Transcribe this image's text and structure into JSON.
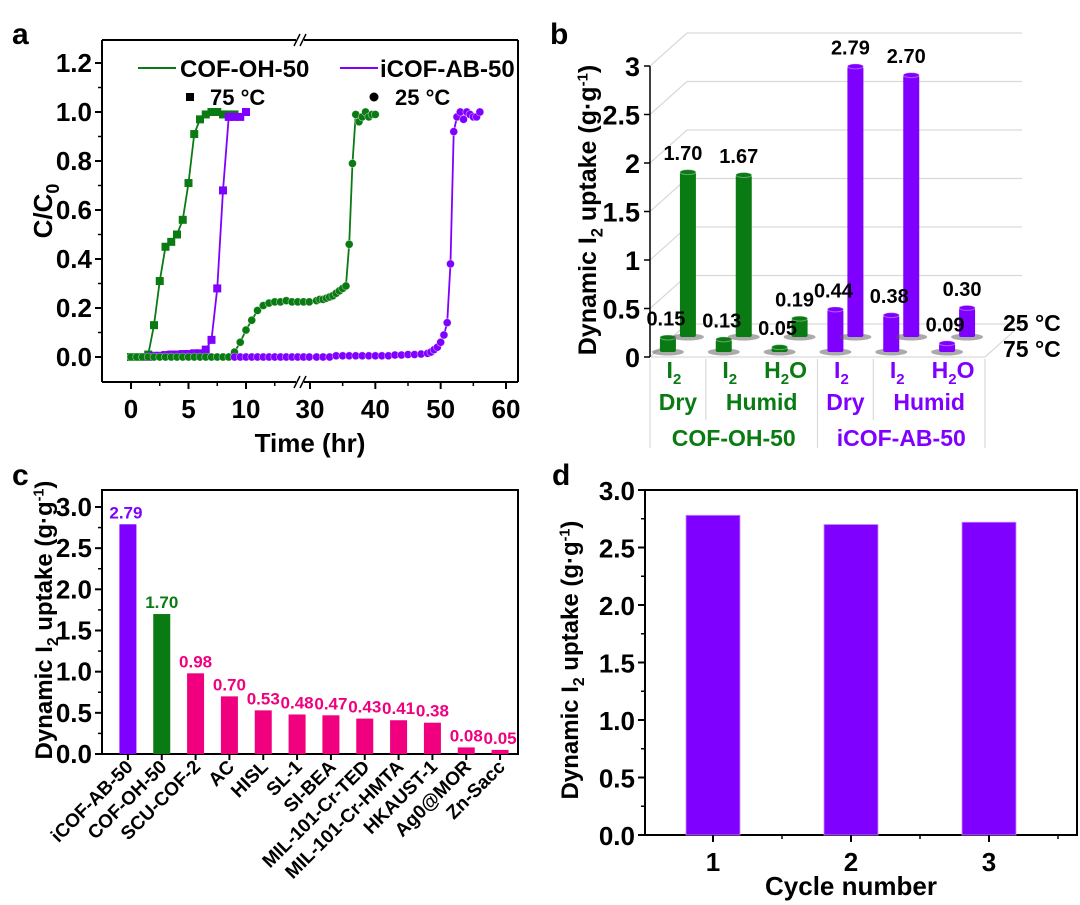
{
  "colors": {
    "green": "#0a7a12",
    "purple": "#8000ff",
    "pink": "#f0007f",
    "black": "#000000",
    "grid": "#d9d9d9"
  },
  "chart_data": [
    {
      "panel": "a",
      "type": "line",
      "title": "",
      "xlabel": "Time (hr)",
      "ylabel": "C/C0",
      "ylabel_main": "C/C",
      "ylabel_sub": "0",
      "xlim_segments": [
        [
          -1,
          16
        ],
        [
          30,
          60
        ]
      ],
      "x_break": true,
      "ylim": [
        -0.1,
        1.3
      ],
      "xticks": [
        0,
        5,
        10,
        30,
        40,
        50,
        60
      ],
      "xtick_labels": [
        "0",
        "5",
        "10",
        "30",
        "40",
        "50",
        "60"
      ],
      "yticks": [
        0.0,
        0.2,
        0.4,
        0.6,
        0.8,
        1.0,
        1.2
      ],
      "ytick_labels": [
        "0.0",
        "0.2",
        "0.4",
        "0.6",
        "0.8",
        "1.0",
        "1.2"
      ],
      "legend": {
        "placement": "top",
        "lines": [
          {
            "label": "COF-OH-50",
            "color": "green"
          },
          {
            "label": "iCOF-AB-50",
            "color": "purple"
          }
        ],
        "markers": [
          {
            "label": "75 °C",
            "marker": "square"
          },
          {
            "label": "25 °C",
            "marker": "circle"
          }
        ]
      },
      "series": [
        {
          "name": "COF-OH-50 75 °C",
          "color": "green",
          "marker": "square",
          "x": [
            0,
            0.25,
            0.5,
            0.75,
            1,
            1.25,
            1.5,
            2,
            2.5,
            3,
            3.5,
            4,
            4.5,
            5,
            5.5,
            6,
            6.5,
            7,
            7.5,
            8,
            8.5,
            9
          ],
          "y": [
            0,
            0,
            0,
            0,
            0,
            0,
            0.01,
            0.13,
            0.31,
            0.45,
            0.47,
            0.5,
            0.56,
            0.71,
            0.91,
            0.97,
            0.99,
            1.0,
            1.0,
            0.99,
            0.99,
            0.99
          ]
        },
        {
          "name": "iCOF-AB-50 75 °C",
          "color": "purple",
          "marker": "square",
          "x": [
            1.5,
            2,
            2.5,
            3,
            3.5,
            4,
            4.5,
            5,
            5.5,
            6,
            6.5,
            7,
            7.5,
            8,
            8.5,
            9,
            9.5,
            10
          ],
          "y": [
            0,
            0.005,
            0.005,
            0.008,
            0.01,
            0.01,
            0.012,
            0.012,
            0.015,
            0.015,
            0.03,
            0.07,
            0.28,
            0.68,
            0.98,
            0.98,
            0.98,
            1.0
          ]
        },
        {
          "name": "COF-OH-50 25 °C",
          "color": "green",
          "marker": "circle",
          "x": [
            0,
            0.5,
            1,
            1.5,
            2,
            2.5,
            3,
            3.5,
            4,
            4.5,
            5,
            5.5,
            6,
            6.5,
            7,
            7.5,
            8,
            8.5,
            9,
            9.5,
            10,
            10.5,
            11,
            11.5,
            12,
            12.5,
            13,
            13.5,
            14,
            14.5,
            15,
            15.5,
            31,
            31.5,
            32,
            32.5,
            33,
            33.5,
            34,
            34.5,
            35,
            35.5,
            36,
            36.5,
            37,
            37.5,
            38,
            38.5,
            39,
            39.5,
            40
          ],
          "y": [
            0,
            0,
            0,
            0,
            0,
            0,
            0,
            0,
            0,
            0,
            0,
            0,
            0,
            0,
            0,
            0,
            0,
            0,
            0.02,
            0.06,
            0.11,
            0.15,
            0.19,
            0.21,
            0.22,
            0.225,
            0.225,
            0.23,
            0.225,
            0.225,
            0.225,
            0.225,
            0.23,
            0.235,
            0.235,
            0.24,
            0.245,
            0.25,
            0.26,
            0.27,
            0.28,
            0.29,
            0.46,
            0.79,
            0.99,
            0.96,
            0.98,
            1.0,
            0.98,
            0.99,
            0.99
          ]
        },
        {
          "name": "iCOF-AB-50 25 °C",
          "color": "purple",
          "marker": "circle",
          "x": [
            9,
            9.5,
            10,
            10.5,
            11,
            11.5,
            12,
            12.5,
            13,
            13.5,
            14,
            14.5,
            15,
            15.5,
            31,
            32,
            33,
            34,
            35,
            36,
            37,
            38,
            39,
            40,
            41,
            42,
            43,
            44,
            45,
            46,
            47,
            48,
            48.5,
            49,
            49.5,
            50,
            50.5,
            51,
            51.5,
            52,
            52.5,
            53,
            53.5,
            54,
            54.5,
            55,
            55.5,
            56
          ],
          "y": [
            0,
            0,
            0,
            0,
            0,
            0,
            0,
            0,
            0,
            0,
            0,
            0,
            0,
            0,
            0,
            0,
            0,
            0.005,
            0.005,
            0.005,
            0.005,
            0.005,
            0.005,
            0.005,
            0.005,
            0.005,
            0.008,
            0.008,
            0.01,
            0.01,
            0.012,
            0.015,
            0.02,
            0.03,
            0.04,
            0.06,
            0.09,
            0.14,
            0.38,
            0.92,
            0.98,
            1.0,
            0.97,
            1.0,
            0.99,
            0.98,
            0.98,
            1.0
          ]
        }
      ]
    },
    {
      "panel": "b",
      "type": "bar",
      "subtype": "3d-cylinder",
      "title": "",
      "ylabel": "Dynamic I2 uptake (g·g-1)",
      "ylim": [
        0,
        3
      ],
      "yticks": [
        0,
        0.5,
        1,
        1.5,
        2,
        2.5,
        3
      ],
      "ytick_labels": [
        "0",
        "0.5",
        "1",
        "1.5",
        "2",
        "2.5",
        "3"
      ],
      "depth_labels": [
        "25 °C",
        "75 °C"
      ],
      "categories": [
        {
          "adsorbate": "I2",
          "condition": "Dry",
          "material": "COF-OH-50",
          "color": "green"
        },
        {
          "adsorbate": "I2",
          "condition": "Humid",
          "material": "COF-OH-50",
          "color": "green"
        },
        {
          "adsorbate": "H2O",
          "condition": "Humid",
          "material": "COF-OH-50",
          "color": "green"
        },
        {
          "adsorbate": "I2",
          "condition": "Dry",
          "material": "iCOF-AB-50",
          "color": "purple"
        },
        {
          "adsorbate": "I2",
          "condition": "Humid",
          "material": "iCOF-AB-50",
          "color": "purple"
        },
        {
          "adsorbate": "H2O",
          "condition": "Humid",
          "material": "iCOF-AB-50",
          "color": "purple"
        }
      ],
      "group_labels": [
        {
          "label": "Dry",
          "span": [
            0,
            0
          ],
          "color": "green"
        },
        {
          "label": "Humid",
          "span": [
            1,
            2
          ],
          "color": "green"
        },
        {
          "label": "Dry",
          "span": [
            3,
            3
          ],
          "color": "purple"
        },
        {
          "label": "Humid",
          "span": [
            4,
            5
          ],
          "color": "purple"
        }
      ],
      "material_labels": [
        {
          "label": "COF-OH-50",
          "span": [
            0,
            2
          ],
          "color": "green"
        },
        {
          "label": "iCOF-AB-50",
          "span": [
            3,
            5
          ],
          "color": "purple"
        }
      ],
      "series": [
        {
          "name": "75 °C",
          "values": [
            0.15,
            0.13,
            0.05,
            0.44,
            0.38,
            0.09
          ],
          "labels": [
            "0.15",
            "0.13",
            "0.05",
            "0.44",
            "0.38",
            "0.09"
          ]
        },
        {
          "name": "25 °C",
          "values": [
            1.7,
            1.67,
            0.19,
            2.79,
            2.7,
            0.3
          ],
          "labels": [
            "1.70",
            "1.67",
            "0.19",
            "2.79",
            "2.70",
            "0.30"
          ]
        }
      ]
    },
    {
      "panel": "c",
      "type": "bar",
      "title": "",
      "xlabel": "",
      "ylabel": "Dynamic I2 uptake (g·g-1)",
      "ylim": [
        0,
        3.2
      ],
      "yticks": [
        0.0,
        0.5,
        1.0,
        1.5,
        2.0,
        2.5,
        3.0
      ],
      "ytick_labels": [
        "0.0",
        "0.5",
        "1.0",
        "1.5",
        "2.0",
        "2.5",
        "3.0"
      ],
      "categories": [
        "iCOF-AB-50",
        "COF-OH-50",
        "SCU-COF-2",
        "AC",
        "HISL",
        "SL-1",
        "SI-BEA",
        "MIL-101-Cr-TED",
        "MIL-101-Cr-HMTA",
        "HKAUST-1",
        "Ag0@MOR",
        "Zn-Sacc"
      ],
      "values": [
        2.79,
        1.7,
        0.98,
        0.7,
        0.53,
        0.48,
        0.47,
        0.43,
        0.41,
        0.38,
        0.08,
        0.05
      ],
      "value_labels": [
        "2.79",
        "1.70",
        "0.98",
        "0.70",
        "0.53",
        "0.48",
        "0.47",
        "0.43",
        "0.41",
        "0.38",
        "0.08",
        "0.05"
      ],
      "bar_colors": [
        "purple",
        "green",
        "pink",
        "pink",
        "pink",
        "pink",
        "pink",
        "pink",
        "pink",
        "pink",
        "pink",
        "pink"
      ]
    },
    {
      "panel": "d",
      "type": "bar",
      "title": "",
      "xlabel": "Cycle number",
      "ylabel": "Dynamic I2 uptake (g·g-1)",
      "ylim": [
        0,
        3.0
      ],
      "yticks": [
        0.0,
        0.5,
        1.0,
        1.5,
        2.0,
        2.5,
        3.0
      ],
      "ytick_labels": [
        "0.0",
        "0.5",
        "1.0",
        "1.5",
        "2.0",
        "2.5",
        "3.0"
      ],
      "categories": [
        "1",
        "2",
        "3"
      ],
      "values": [
        2.78,
        2.7,
        2.72
      ],
      "bar_color": "purple"
    }
  ],
  "panel_labels": [
    "a",
    "b",
    "c",
    "d"
  ],
  "ylabel_parts": {
    "prefix": "Dynamic I",
    "sub": "2",
    "mid": " uptake (g·g",
    "sup": "-1",
    "suffix": ")"
  }
}
